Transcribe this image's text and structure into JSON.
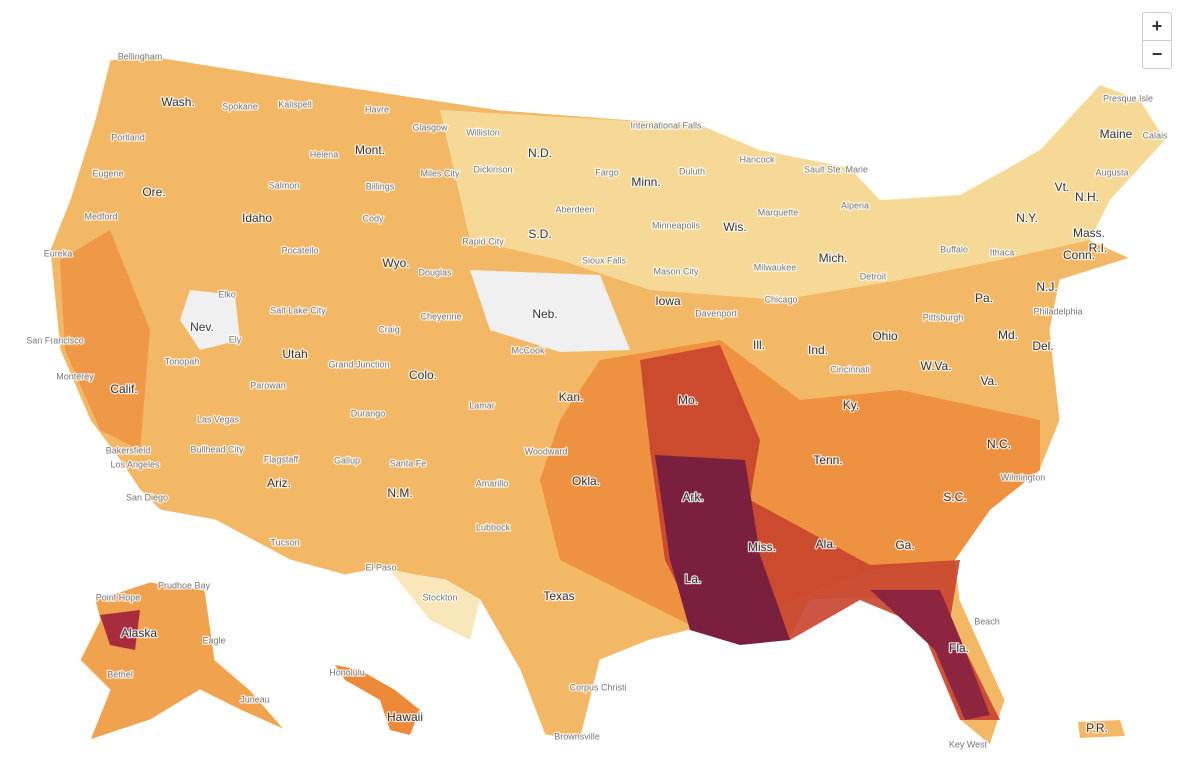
{
  "zoom_controls": {
    "zoom_in": "+",
    "zoom_out": "−"
  },
  "state_labels": [
    "Wash.",
    "Ore.",
    "Calif.",
    "Nev.",
    "Idaho",
    "Mont.",
    "Wyo.",
    "Utah",
    "Colo.",
    "Ariz.",
    "N.M.",
    "N.D.",
    "S.D.",
    "Neb.",
    "Kan.",
    "Okla.",
    "Texas",
    "Minn.",
    "Iowa",
    "Mo.",
    "Ark.",
    "La.",
    "Wis.",
    "Ill.",
    "Mich.",
    "Ind.",
    "Ohio",
    "Ky.",
    "Tenn.",
    "Miss.",
    "Ala.",
    "Ga.",
    "Fla.",
    "S.C.",
    "N.C.",
    "Va.",
    "W.Va.",
    "Pa.",
    "N.Y.",
    "Vt.",
    "N.H.",
    "Maine",
    "Mass.",
    "R.I.",
    "Conn.",
    "N.J.",
    "Del.",
    "Md.",
    "Alaska",
    "Hawaii",
    "P.R."
  ],
  "city_labels": [
    "Bellingham",
    "Spokane",
    "Kalispell",
    "Havre",
    "Glasgow",
    "Williston",
    "International Falls",
    "Presque Isle",
    "Calais",
    "Hancock",
    "Sault Ste. Marie",
    "Portland",
    "Eugene",
    "Medford",
    "Eureka",
    "San Francisco",
    "Monterey",
    "Bakersfield",
    "Los Angeles",
    "San Diego",
    "Helena",
    "Billings",
    "Miles City",
    "Dickinson",
    "Fargo",
    "Duluth",
    "Salmon",
    "Pocatello",
    "Cody",
    "Douglas",
    "Rapid City",
    "Aberdeen",
    "Minneapolis",
    "Marquette",
    "Alpena",
    "Sioux Falls",
    "Mason City",
    "Milwaukee",
    "Detroit",
    "Buffalo",
    "Ithaca",
    "Augusta",
    "Elko",
    "Salt Lake City",
    "Cheyenne",
    "Craig",
    "Ely",
    "Tonopah",
    "McCook",
    "Davenport",
    "Chicago",
    "Pittsburgh",
    "Philadelphia",
    "Grand Junction",
    "Parowan",
    "Durango",
    "Lamar",
    "Las Vegas",
    "Bullhead City",
    "Flagstaff",
    "Gallup",
    "Santa Fe",
    "Woodward",
    "Amarillo",
    "Lubbock",
    "Tucson",
    "El Paso",
    "Stockton",
    "Brownsville",
    "Corpus Christi",
    "Prudhoe Bay",
    "Point Hope",
    "Eagle",
    "Bethel",
    "Juneau",
    "Honolulu",
    "Beach",
    "Key West",
    "Cincinnati",
    "Wilmington"
  ]
}
